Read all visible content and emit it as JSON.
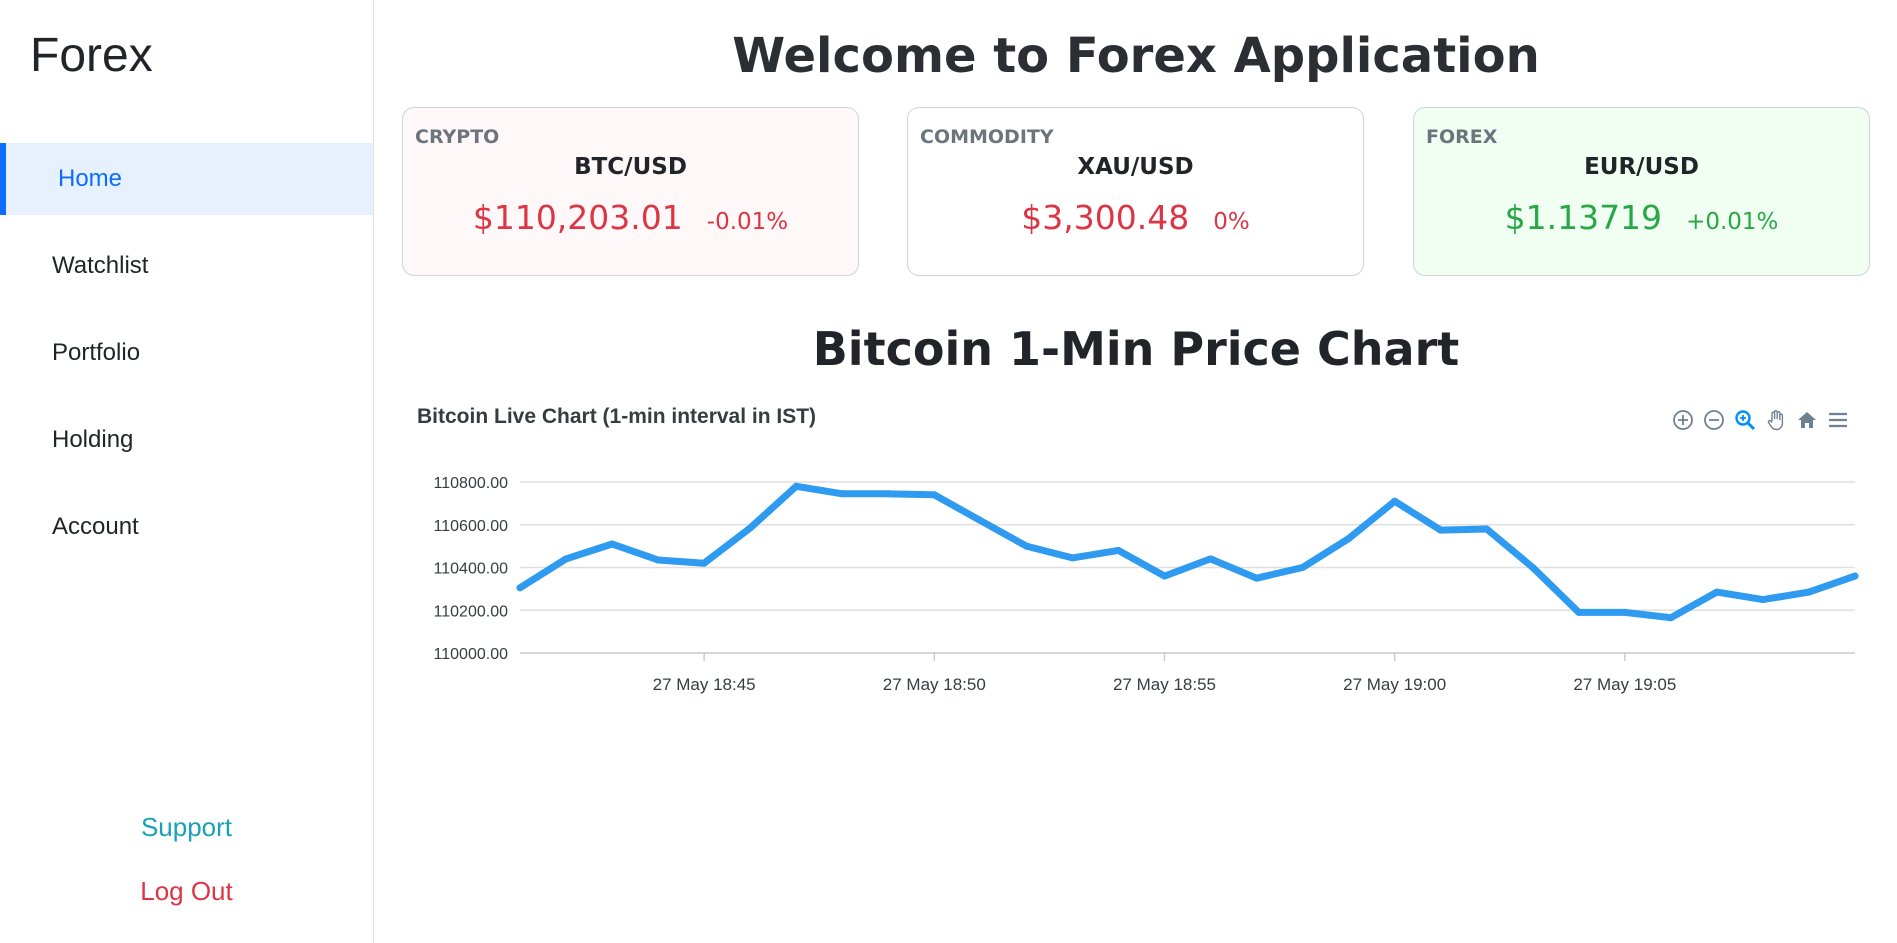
{
  "sidebar": {
    "brand": "Forex",
    "items": [
      {
        "label": "Home",
        "active": true
      },
      {
        "label": "Watchlist",
        "active": false
      },
      {
        "label": "Portfolio",
        "active": false
      },
      {
        "label": "Holding",
        "active": false
      },
      {
        "label": "Account",
        "active": false
      }
    ],
    "support": "Support",
    "logout": "Log Out"
  },
  "header": {
    "welcome": "Welcome to Forex Application"
  },
  "cards": [
    {
      "category": "CRYPTO",
      "pair": "BTC/USD",
      "price": "$110,203.01",
      "change": "-0.01%",
      "status": "red"
    },
    {
      "category": "COMMODITY",
      "pair": "XAU/USD",
      "price": "$3,300.48",
      "change": "0%",
      "status": "red"
    },
    {
      "category": "FOREX",
      "pair": "EUR/USD",
      "price": "$1.13719",
      "change": "+0.01%",
      "status": "green"
    }
  ],
  "chart_section": {
    "title": "Bitcoin 1-Min Price Chart",
    "subtitle": "Bitcoin Live Chart (1-min interval in IST)",
    "toolbar_icons": [
      "zoom-in-icon",
      "zoom-out-icon",
      "selection-zoom-icon",
      "pan-icon",
      "reset-home-icon",
      "menu-icon"
    ]
  },
  "chart_data": {
    "type": "line",
    "title": "Bitcoin Live Chart (1-min interval in IST)",
    "xlabel": "",
    "ylabel": "",
    "ylim": [
      110000,
      110800
    ],
    "yticks": [
      "110800.00",
      "110600.00",
      "110400.00",
      "110200.00",
      "110000.00"
    ],
    "ytick_values": [
      110800,
      110600,
      110400,
      110200,
      110000
    ],
    "x_start_time": "27 May 18:41",
    "x_interval_minutes": 1,
    "xticks": [
      {
        "label": "27 May 18:45",
        "index": 4
      },
      {
        "label": "27 May 18:50",
        "index": 9
      },
      {
        "label": "27 May 18:55",
        "index": 14
      },
      {
        "label": "27 May 19:00",
        "index": 19
      },
      {
        "label": "27 May 19:05",
        "index": 24
      }
    ],
    "x_range_minutes": [
      0.0,
      29.0
    ],
    "grid": true,
    "color": "#2e9bf0",
    "series": [
      {
        "values": [
          110305,
          110440,
          110510,
          110435,
          110420,
          110585,
          110780,
          110745,
          110745,
          110740,
          110620,
          110500,
          110445,
          110480,
          110360,
          110440,
          110350,
          110400,
          110535,
          110710,
          110575,
          110580,
          110400,
          110190,
          110190,
          110165,
          110285,
          110250,
          110285,
          110360
        ]
      }
    ]
  }
}
